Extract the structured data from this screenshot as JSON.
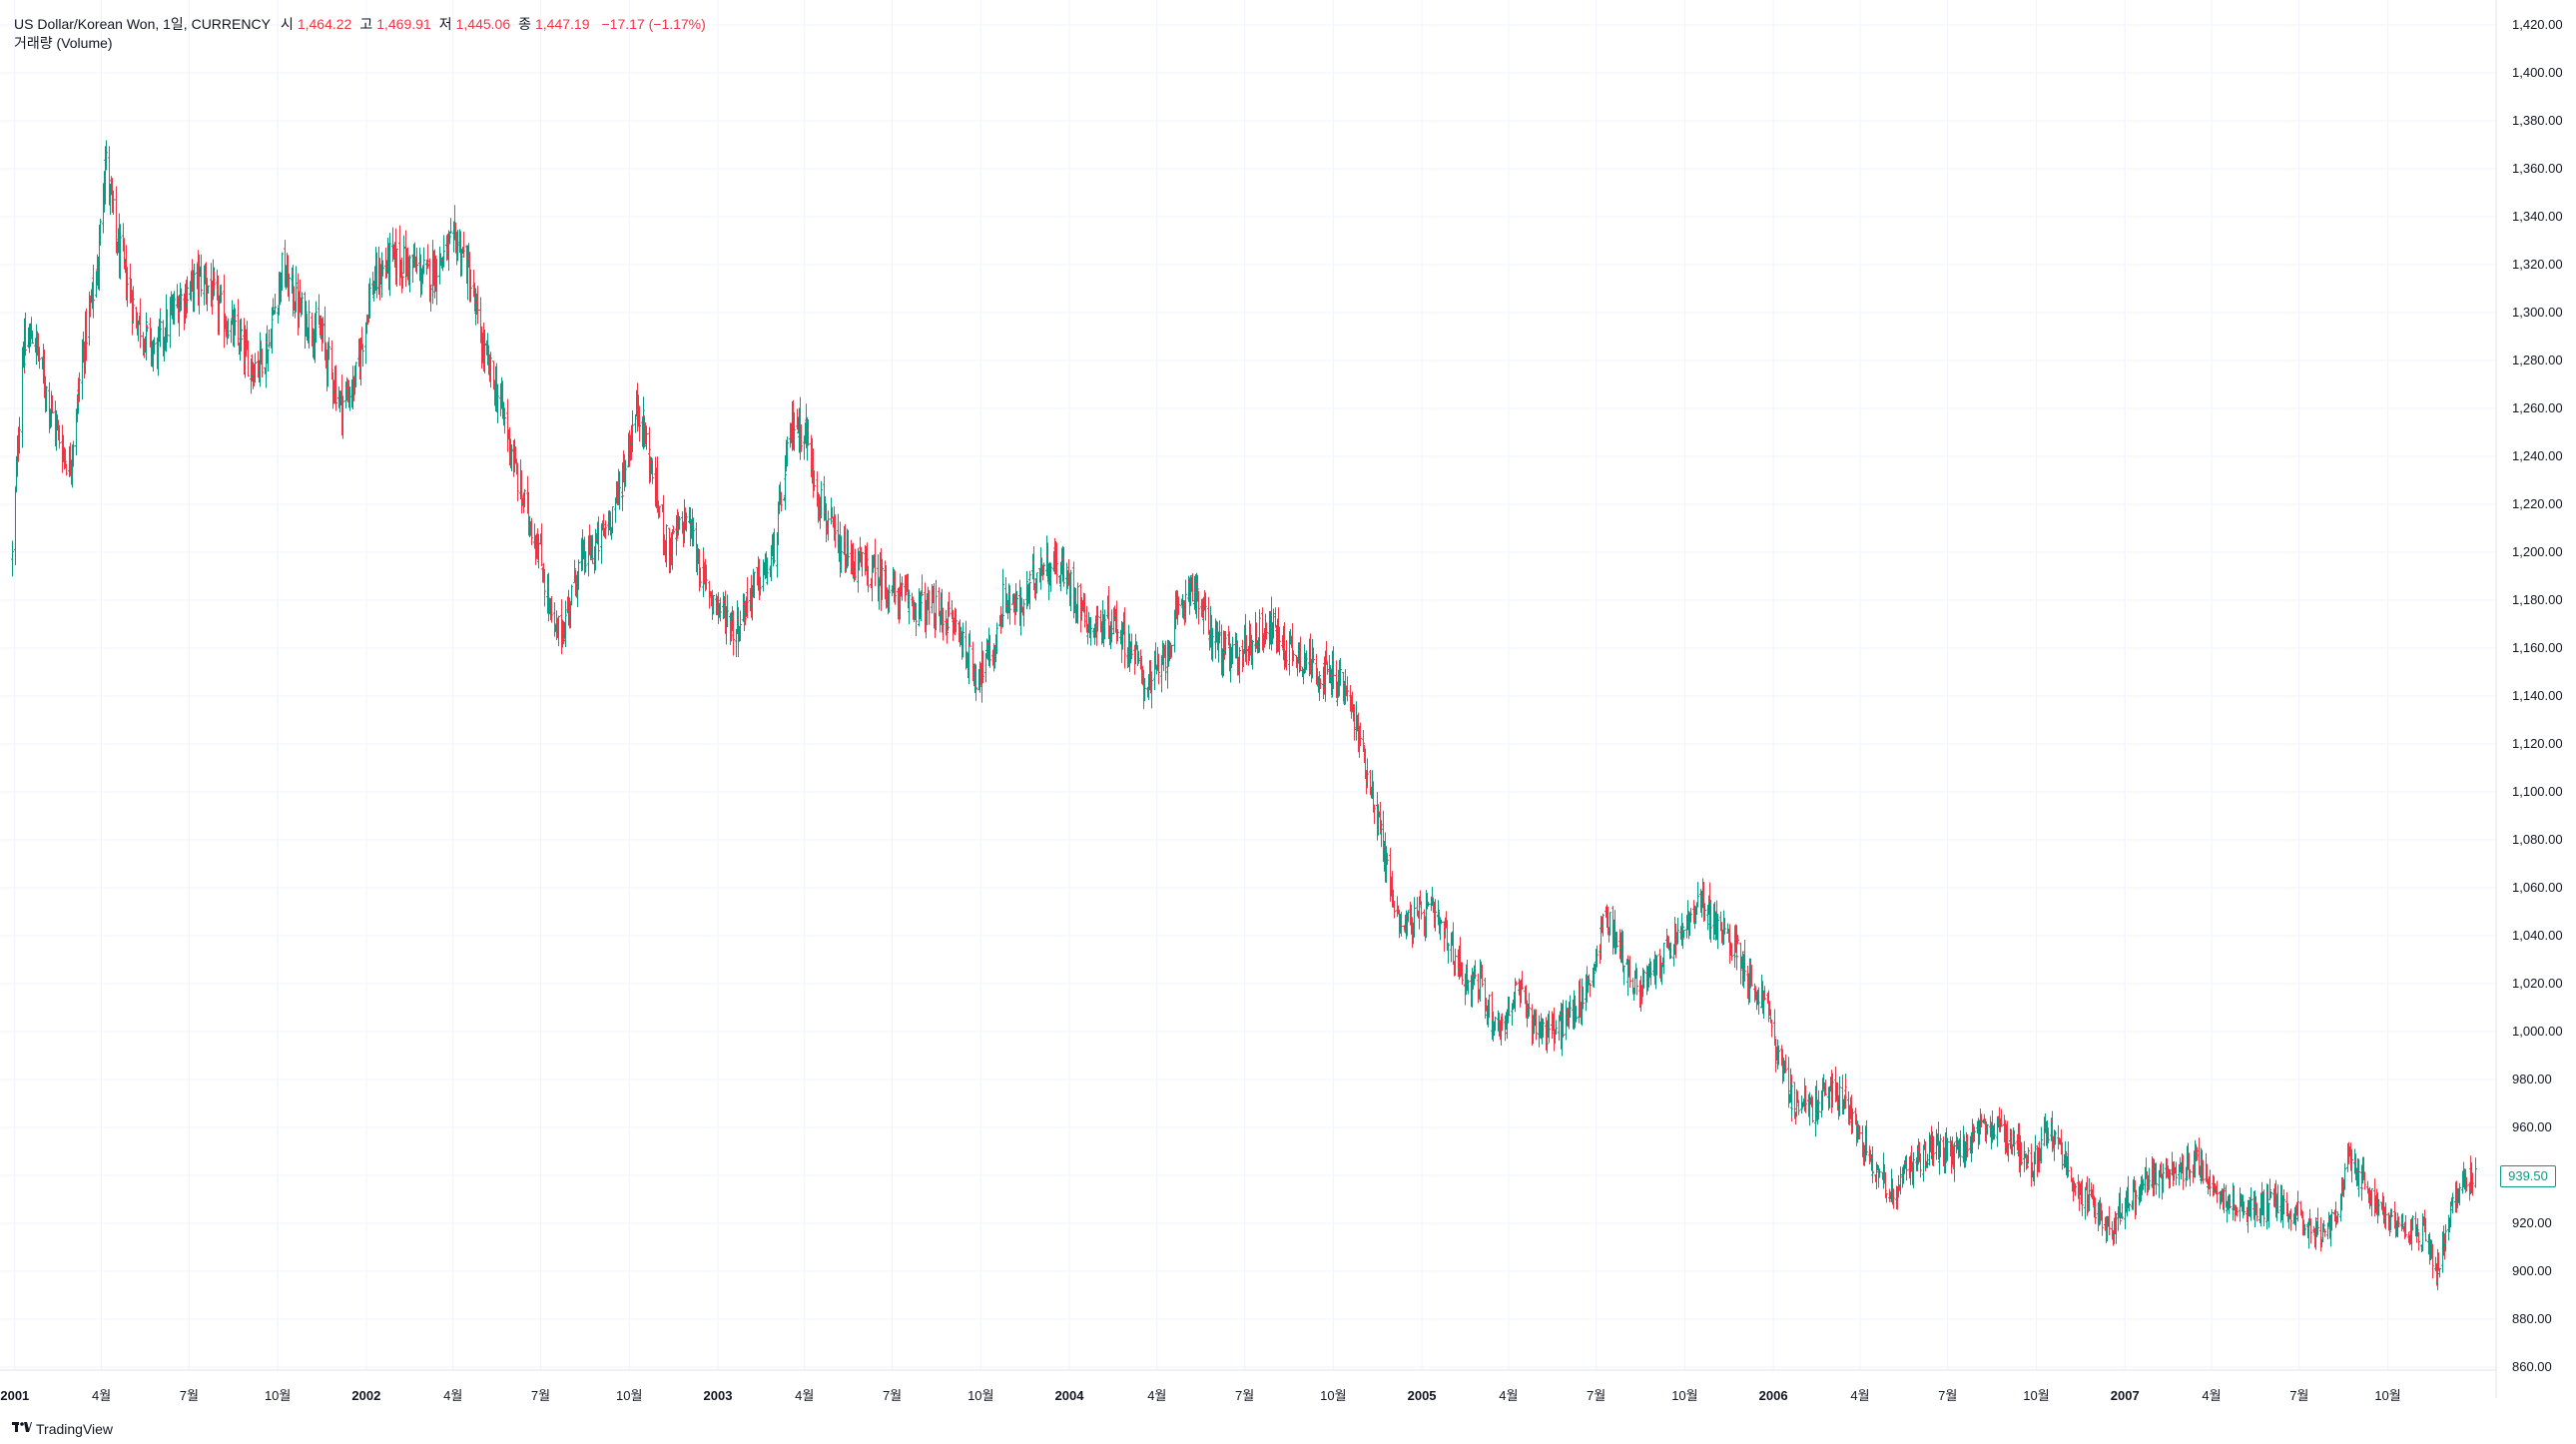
{
  "legend": {
    "symbol": "US Dollar/Korean Won, 1일, CURRENCY",
    "open_label": "시",
    "open_value": "1,464.22",
    "high_label": "고",
    "high_value": "1,469.91",
    "low_label": "저",
    "low_value": "1,445.06",
    "close_label": "종",
    "close_value": "1,447.19",
    "change": "−17.17 (−1.17%)",
    "volume_label": "거래량 (Volume)"
  },
  "last_price_tag": "939.50",
  "footer": {
    "logo": "𝟭𝟳",
    "brand": "TradingView"
  },
  "colors": {
    "up": "#089981",
    "down": "#f23645",
    "grid": "#f0f3fa",
    "text": "#131722"
  },
  "chart_data": {
    "type": "bar",
    "style": "ohlc",
    "ylim": [
      850,
      1425
    ],
    "y_ticks": [
      "1,420.00",
      "1,400.00",
      "1,380.00",
      "1,360.00",
      "1,340.00",
      "1,320.00",
      "1,300.00",
      "1,280.00",
      "1,260.00",
      "1,240.00",
      "1,220.00",
      "1,200.00",
      "1,180.00",
      "1,160.00",
      "1,140.00",
      "1,120.00",
      "1,100.00",
      "1,080.00",
      "1,060.00",
      "1,040.00",
      "1,020.00",
      "1,000.00",
      "980.00",
      "960.00",
      "940.00",
      "920.00",
      "900.00",
      "880.00",
      "860.00"
    ],
    "x_ticks": [
      {
        "label": "2001",
        "bold": true,
        "date": "2001-01"
      },
      {
        "label": "4월",
        "bold": false,
        "date": "2001-04"
      },
      {
        "label": "7월",
        "bold": false,
        "date": "2001-07"
      },
      {
        "label": "10월",
        "bold": false,
        "date": "2001-10"
      },
      {
        "label": "2002",
        "bold": true,
        "date": "2002-01"
      },
      {
        "label": "4월",
        "bold": false,
        "date": "2002-04"
      },
      {
        "label": "7월",
        "bold": false,
        "date": "2002-07"
      },
      {
        "label": "10월",
        "bold": false,
        "date": "2002-10"
      },
      {
        "label": "2003",
        "bold": true,
        "date": "2003-01"
      },
      {
        "label": "4월",
        "bold": false,
        "date": "2003-04"
      },
      {
        "label": "7월",
        "bold": false,
        "date": "2003-07"
      },
      {
        "label": "10월",
        "bold": false,
        "date": "2003-10"
      },
      {
        "label": "2004",
        "bold": true,
        "date": "2004-01"
      },
      {
        "label": "4월",
        "bold": false,
        "date": "2004-04"
      },
      {
        "label": "7월",
        "bold": false,
        "date": "2004-07"
      },
      {
        "label": "10월",
        "bold": false,
        "date": "2004-10"
      },
      {
        "label": "2005",
        "bold": true,
        "date": "2005-01"
      },
      {
        "label": "4월",
        "bold": false,
        "date": "2005-04"
      },
      {
        "label": "7월",
        "bold": false,
        "date": "2005-07"
      },
      {
        "label": "10월",
        "bold": false,
        "date": "2005-10"
      },
      {
        "label": "2006",
        "bold": true,
        "date": "2006-01"
      },
      {
        "label": "4월",
        "bold": false,
        "date": "2006-04"
      },
      {
        "label": "7월",
        "bold": false,
        "date": "2006-07"
      },
      {
        "label": "10월",
        "bold": false,
        "date": "2006-10"
      },
      {
        "label": "2007",
        "bold": true,
        "date": "2007-01"
      },
      {
        "label": "4월",
        "bold": false,
        "date": "2007-04"
      },
      {
        "label": "7월",
        "bold": false,
        "date": "2007-07"
      },
      {
        "label": "10월",
        "bold": false,
        "date": "2007-10"
      }
    ],
    "price_path": [
      {
        "date": "2000-12-29",
        "value": 1198
      },
      {
        "date": "2001-01-08",
        "value": 1282
      },
      {
        "date": "2001-01-20",
        "value": 1292
      },
      {
        "date": "2001-02-05",
        "value": 1262
      },
      {
        "date": "2001-02-26",
        "value": 1235
      },
      {
        "date": "2001-03-15",
        "value": 1290
      },
      {
        "date": "2001-03-28",
        "value": 1320
      },
      {
        "date": "2001-04-04",
        "value": 1368
      },
      {
        "date": "2001-04-16",
        "value": 1330
      },
      {
        "date": "2001-05-05",
        "value": 1300
      },
      {
        "date": "2001-05-25",
        "value": 1283
      },
      {
        "date": "2001-06-20",
        "value": 1305
      },
      {
        "date": "2001-07-15",
        "value": 1315
      },
      {
        "date": "2001-08-10",
        "value": 1295
      },
      {
        "date": "2001-09-05",
        "value": 1278
      },
      {
        "date": "2001-09-20",
        "value": 1285
      },
      {
        "date": "2001-10-05",
        "value": 1318
      },
      {
        "date": "2001-10-25",
        "value": 1300
      },
      {
        "date": "2001-11-15",
        "value": 1290
      },
      {
        "date": "2001-12-05",
        "value": 1262
      },
      {
        "date": "2001-12-20",
        "value": 1270
      },
      {
        "date": "2002-01-05",
        "value": 1310
      },
      {
        "date": "2002-01-25",
        "value": 1322
      },
      {
        "date": "2002-02-15",
        "value": 1320
      },
      {
        "date": "2002-03-05",
        "value": 1315
      },
      {
        "date": "2002-03-25",
        "value": 1325
      },
      {
        "date": "2002-04-05",
        "value": 1330
      },
      {
        "date": "2002-04-15",
        "value": 1320
      },
      {
        "date": "2002-05-01",
        "value": 1285
      },
      {
        "date": "2002-05-20",
        "value": 1262
      },
      {
        "date": "2002-06-10",
        "value": 1225
      },
      {
        "date": "2002-06-30",
        "value": 1200
      },
      {
        "date": "2002-07-15",
        "value": 1165
      },
      {
        "date": "2002-07-25",
        "value": 1170
      },
      {
        "date": "2002-08-10",
        "value": 1195
      },
      {
        "date": "2002-09-01",
        "value": 1205
      },
      {
        "date": "2002-09-20",
        "value": 1225
      },
      {
        "date": "2002-10-10",
        "value": 1262
      },
      {
        "date": "2002-10-25",
        "value": 1232
      },
      {
        "date": "2002-11-10",
        "value": 1200
      },
      {
        "date": "2002-11-30",
        "value": 1215
      },
      {
        "date": "2002-12-15",
        "value": 1190
      },
      {
        "date": "2003-01-05",
        "value": 1175
      },
      {
        "date": "2003-01-20",
        "value": 1168
      },
      {
        "date": "2003-02-05",
        "value": 1185
      },
      {
        "date": "2003-02-25",
        "value": 1195
      },
      {
        "date": "2003-03-10",
        "value": 1228
      },
      {
        "date": "2003-03-20",
        "value": 1255
      },
      {
        "date": "2003-04-01",
        "value": 1250
      },
      {
        "date": "2003-04-15",
        "value": 1225
      },
      {
        "date": "2003-05-05",
        "value": 1200
      },
      {
        "date": "2003-05-25",
        "value": 1195
      },
      {
        "date": "2003-06-15",
        "value": 1190
      },
      {
        "date": "2003-07-05",
        "value": 1182
      },
      {
        "date": "2003-07-25",
        "value": 1178
      },
      {
        "date": "2003-08-15",
        "value": 1175
      },
      {
        "date": "2003-09-05",
        "value": 1170
      },
      {
        "date": "2003-09-25",
        "value": 1148
      },
      {
        "date": "2003-10-15",
        "value": 1160
      },
      {
        "date": "2003-10-25",
        "value": 1182
      },
      {
        "date": "2003-11-10",
        "value": 1175
      },
      {
        "date": "2003-12-01",
        "value": 1195
      },
      {
        "date": "2003-12-20",
        "value": 1195
      },
      {
        "date": "2004-01-10",
        "value": 1180
      },
      {
        "date": "2004-01-25",
        "value": 1168
      },
      {
        "date": "2004-02-15",
        "value": 1172
      },
      {
        "date": "2004-03-05",
        "value": 1160
      },
      {
        "date": "2004-03-20",
        "value": 1145
      },
      {
        "date": "2004-04-05",
        "value": 1152
      },
      {
        "date": "2004-04-20",
        "value": 1170
      },
      {
        "date": "2004-05-05",
        "value": 1188
      },
      {
        "date": "2004-05-25",
        "value": 1168
      },
      {
        "date": "2004-06-15",
        "value": 1155
      },
      {
        "date": "2004-07-05",
        "value": 1162
      },
      {
        "date": "2004-07-25",
        "value": 1170
      },
      {
        "date": "2004-08-15",
        "value": 1160
      },
      {
        "date": "2004-09-05",
        "value": 1155
      },
      {
        "date": "2004-09-25",
        "value": 1148
      },
      {
        "date": "2004-10-10",
        "value": 1145
      },
      {
        "date": "2004-10-25",
        "value": 1128
      },
      {
        "date": "2004-11-10",
        "value": 1100
      },
      {
        "date": "2004-11-25",
        "value": 1070
      },
      {
        "date": "2004-12-05",
        "value": 1048
      },
      {
        "date": "2004-12-20",
        "value": 1045
      },
      {
        "date": "2005-01-10",
        "value": 1050
      },
      {
        "date": "2005-01-25",
        "value": 1040
      },
      {
        "date": "2005-02-15",
        "value": 1022
      },
      {
        "date": "2005-03-01",
        "value": 1020
      },
      {
        "date": "2005-03-15",
        "value": 1005
      },
      {
        "date": "2005-03-25",
        "value": 1002
      },
      {
        "date": "2005-04-10",
        "value": 1018
      },
      {
        "date": "2005-04-25",
        "value": 1005
      },
      {
        "date": "2005-05-10",
        "value": 1000
      },
      {
        "date": "2005-05-25",
        "value": 1002
      },
      {
        "date": "2005-06-15",
        "value": 1012
      },
      {
        "date": "2005-06-30",
        "value": 1030
      },
      {
        "date": "2005-07-10",
        "value": 1050
      },
      {
        "date": "2005-07-25",
        "value": 1035
      },
      {
        "date": "2005-08-10",
        "value": 1018
      },
      {
        "date": "2005-08-25",
        "value": 1022
      },
      {
        "date": "2005-09-10",
        "value": 1032
      },
      {
        "date": "2005-09-25",
        "value": 1040
      },
      {
        "date": "2005-10-10",
        "value": 1048
      },
      {
        "date": "2005-10-20",
        "value": 1055
      },
      {
        "date": "2005-11-05",
        "value": 1042
      },
      {
        "date": "2005-11-25",
        "value": 1035
      },
      {
        "date": "2005-12-10",
        "value": 1018
      },
      {
        "date": "2005-12-25",
        "value": 1012
      },
      {
        "date": "2006-01-05",
        "value": 990
      },
      {
        "date": "2006-01-20",
        "value": 972
      },
      {
        "date": "2006-02-10",
        "value": 968
      },
      {
        "date": "2006-03-01",
        "value": 975
      },
      {
        "date": "2006-03-15",
        "value": 972
      },
      {
        "date": "2006-04-01",
        "value": 958
      },
      {
        "date": "2006-04-15",
        "value": 945
      },
      {
        "date": "2006-05-05",
        "value": 932
      },
      {
        "date": "2006-05-25",
        "value": 945
      },
      {
        "date": "2006-06-15",
        "value": 952
      },
      {
        "date": "2006-07-05",
        "value": 948
      },
      {
        "date": "2006-07-25",
        "value": 955
      },
      {
        "date": "2006-08-15",
        "value": 960
      },
      {
        "date": "2006-09-05",
        "value": 955
      },
      {
        "date": "2006-09-25",
        "value": 945
      },
      {
        "date": "2006-10-15",
        "value": 958
      },
      {
        "date": "2006-10-30",
        "value": 948
      },
      {
        "date": "2006-11-15",
        "value": 932
      },
      {
        "date": "2006-12-05",
        "value": 925
      },
      {
        "date": "2006-12-15",
        "value": 918
      },
      {
        "date": "2007-01-05",
        "value": 930
      },
      {
        "date": "2007-01-25",
        "value": 938
      },
      {
        "date": "2007-02-15",
        "value": 940
      },
      {
        "date": "2007-03-05",
        "value": 942
      },
      {
        "date": "2007-03-15",
        "value": 948
      },
      {
        "date": "2007-04-05",
        "value": 935
      },
      {
        "date": "2007-04-25",
        "value": 928
      },
      {
        "date": "2007-05-15",
        "value": 925
      },
      {
        "date": "2007-06-05",
        "value": 930
      },
      {
        "date": "2007-06-25",
        "value": 925
      },
      {
        "date": "2007-07-15",
        "value": 918
      },
      {
        "date": "2007-07-25",
        "value": 915
      },
      {
        "date": "2007-08-10",
        "value": 925
      },
      {
        "date": "2007-08-20",
        "value": 945
      },
      {
        "date": "2007-09-05",
        "value": 938
      },
      {
        "date": "2007-09-25",
        "value": 925
      },
      {
        "date": "2007-10-10",
        "value": 915
      },
      {
        "date": "2007-10-25",
        "value": 918
      },
      {
        "date": "2007-11-10",
        "value": 915
      },
      {
        "date": "2007-11-20",
        "value": 900
      },
      {
        "date": "2007-12-05",
        "value": 925
      },
      {
        "date": "2007-12-15",
        "value": 935
      },
      {
        "date": "2007-12-31",
        "value": 938
      }
    ],
    "x_range": [
      "2000-12-27",
      "2008-01-09"
    ],
    "last_value": 939.5
  }
}
